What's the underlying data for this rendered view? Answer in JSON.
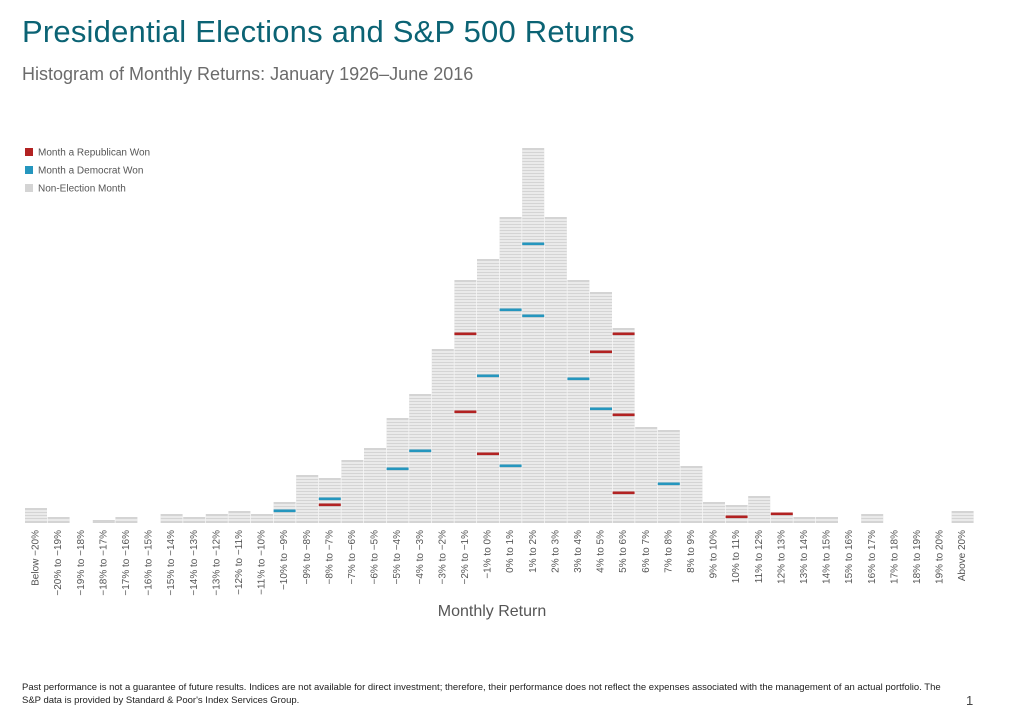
{
  "title": "Presidential Elections and S&P 500 Returns",
  "subtitle": "Histogram of Monthly Returns: January 1926–June 2016",
  "footnote": "Past performance is not a guarantee of future results. Indices are not available for direct investment; therefore, their performance does not reflect the expenses associated with the management of an actual portfolio. The S&P data is provided by Standard & Poor's Index Services Group.",
  "page_number": "1",
  "colors": {
    "title": "#0b6374",
    "republican": "#b22222",
    "democrat": "#2596be",
    "non_election": "#d4d4d4"
  },
  "chart_data": {
    "type": "bar",
    "title": "Histogram of Monthly Returns: January 1926–June 2016",
    "xlabel": "Monthly Return",
    "ylabel": "",
    "ylim": [
      0,
      125
    ],
    "legend": {
      "placement": "top-left",
      "entries": [
        {
          "name": "Month a Republican Won",
          "key": "republican"
        },
        {
          "name": "Month a Democrat Won",
          "key": "democrat"
        },
        {
          "name": "Non-Election Month",
          "key": "non_election"
        }
      ]
    },
    "categories": [
      "Below −20%",
      "−20% to −19%",
      "−19% to −18%",
      "−18% to −17%",
      "−17% to −16%",
      "−16% to −15%",
      "−15% to −14%",
      "−14% to −13%",
      "−13% to −12%",
      "−12% to −11%",
      "−11% to −10%",
      "−10% to −9%",
      "−9% to −8%",
      "−8% to −7%",
      "−7% to −6%",
      "−6% to −5%",
      "−5% to −4%",
      "−4% to −3%",
      "−3% to −2%",
      "−2% to −1%",
      "−1% to 0%",
      "0% to 1%",
      "1% to 2%",
      "2% to 3%",
      "3% to 4%",
      "4% to 5%",
      "5% to 6%",
      "6% to 7%",
      "7% to 8%",
      "8% to 9%",
      "9% to 10%",
      "10% to 11%",
      "11% to 12%",
      "12% to 13%",
      "13% to 14%",
      "14% to 15%",
      "15% to 16%",
      "16% to 17%",
      "17% to 18%",
      "18% to 19%",
      "19% to 20%",
      "Above 20%"
    ],
    "values": [
      5,
      2,
      0,
      1,
      2,
      0,
      3,
      2,
      3,
      4,
      3,
      7,
      16,
      15,
      21,
      25,
      35,
      43,
      58,
      81,
      88,
      102,
      125,
      102,
      81,
      77,
      65,
      32,
      31,
      19,
      7,
      6,
      9,
      3,
      2,
      2,
      0,
      3,
      0,
      0,
      0,
      4
    ],
    "election_months": [
      {
        "category": "−10% to −9%",
        "level": 4,
        "party": "democrat"
      },
      {
        "category": "−8% to −7%",
        "level": 8,
        "party": "democrat"
      },
      {
        "category": "−8% to −7%",
        "level": 6,
        "party": "republican"
      },
      {
        "category": "−5% to −4%",
        "level": 18,
        "party": "democrat"
      },
      {
        "category": "−4% to −3%",
        "level": 24,
        "party": "democrat"
      },
      {
        "category": "−2% to −1%",
        "level": 63,
        "party": "republican"
      },
      {
        "category": "−2% to −1%",
        "level": 37,
        "party": "republican"
      },
      {
        "category": "−1% to 0%",
        "level": 49,
        "party": "democrat"
      },
      {
        "category": "−1% to 0%",
        "level": 23,
        "party": "republican"
      },
      {
        "category": "0% to 1%",
        "level": 71,
        "party": "democrat"
      },
      {
        "category": "0% to 1%",
        "level": 19,
        "party": "democrat"
      },
      {
        "category": "1% to 2%",
        "level": 93,
        "party": "democrat"
      },
      {
        "category": "1% to 2%",
        "level": 69,
        "party": "democrat"
      },
      {
        "category": "3% to 4%",
        "level": 48,
        "party": "democrat"
      },
      {
        "category": "4% to 5%",
        "level": 57,
        "party": "republican"
      },
      {
        "category": "4% to 5%",
        "level": 38,
        "party": "democrat"
      },
      {
        "category": "5% to 6%",
        "level": 63,
        "party": "republican"
      },
      {
        "category": "5% to 6%",
        "level": 36,
        "party": "republican"
      },
      {
        "category": "5% to 6%",
        "level": 10,
        "party": "republican"
      },
      {
        "category": "7% to 8%",
        "level": 13,
        "party": "democrat"
      },
      {
        "category": "10% to 11%",
        "level": 2,
        "party": "republican"
      },
      {
        "category": "12% to 13%",
        "level": 3,
        "party": "republican"
      }
    ]
  }
}
